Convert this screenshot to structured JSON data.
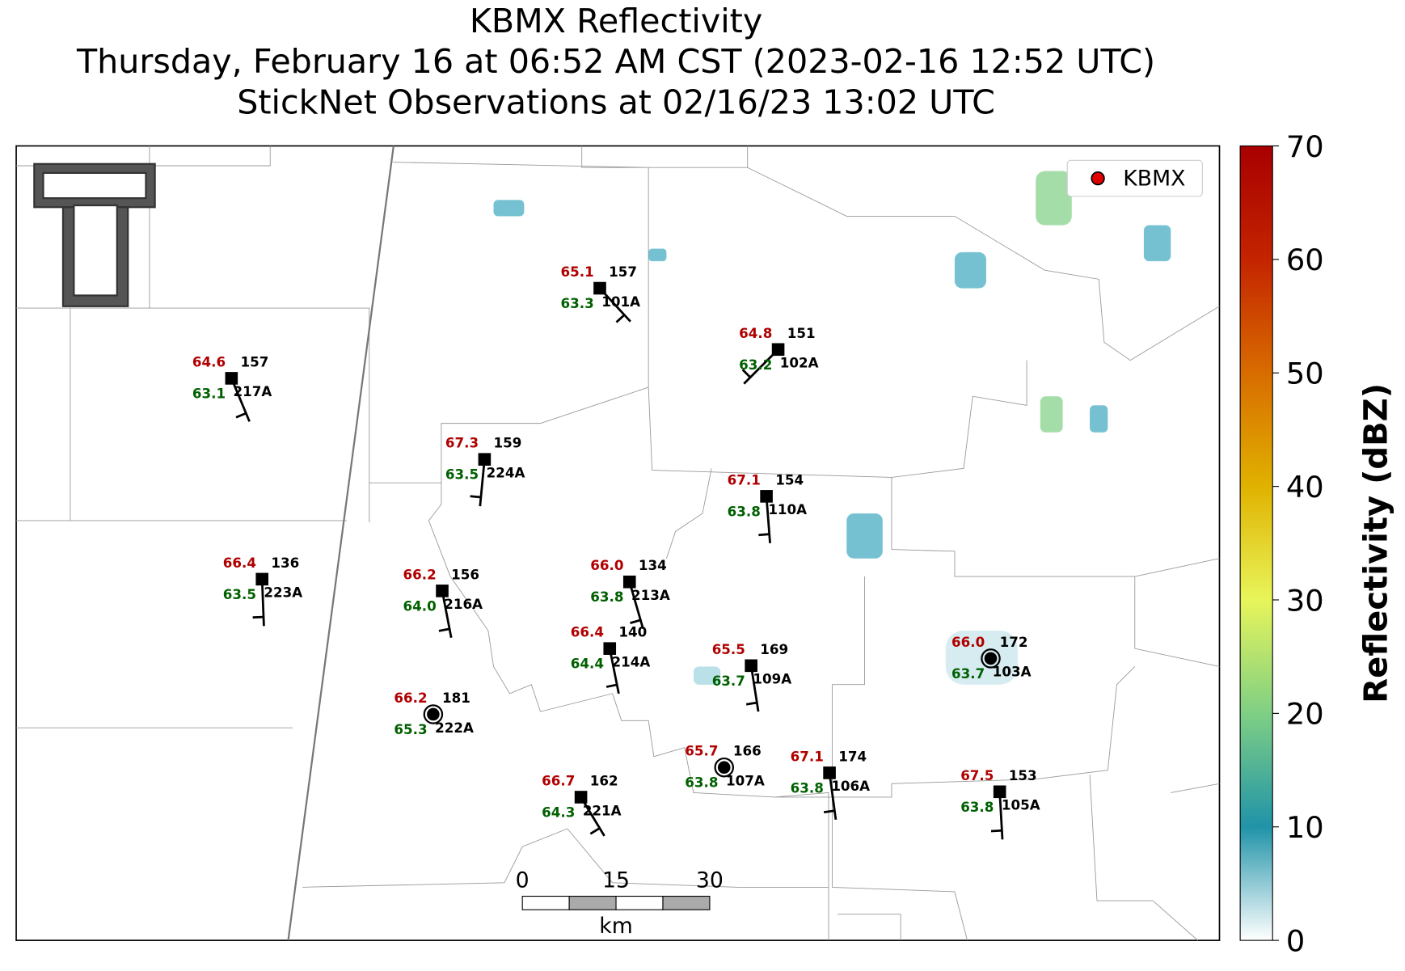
{
  "title": {
    "line1": "KBMX Reflectivity",
    "line2": "Thursday, February 16 at 06:52 AM CST (2023-02-16 12:52 UTC)",
    "line3": "StickNet Observations at 02/16/23 13:02 UTC"
  },
  "legend": {
    "label": "KBMX"
  },
  "colorbar": {
    "label": "Reflectivity (dBZ)",
    "lim": [
      0,
      70
    ],
    "ticks": [
      0,
      10,
      20,
      30,
      40,
      50,
      60,
      70
    ]
  },
  "scalebar": {
    "ticks": [
      0,
      15,
      30
    ],
    "unit": "km"
  },
  "stations": [
    {
      "id": "101A",
      "temp": "65.1",
      "dew": "63.3",
      "value": "157"
    },
    {
      "id": "102A",
      "temp": "64.8",
      "dew": "63.2",
      "value": "151"
    },
    {
      "id": "217A",
      "temp": "64.6",
      "dew": "63.1",
      "value": "157"
    },
    {
      "id": "224A",
      "temp": "67.3",
      "dew": "63.5",
      "value": "159"
    },
    {
      "id": "110A",
      "temp": "67.1",
      "dew": "63.8",
      "value": "154"
    },
    {
      "id": "223A",
      "temp": "66.4",
      "dew": "63.5",
      "value": "136"
    },
    {
      "id": "216A",
      "temp": "66.2",
      "dew": "64.0",
      "value": "156"
    },
    {
      "id": "213A",
      "temp": "66.0",
      "dew": "63.8",
      "value": "134"
    },
    {
      "id": "214A",
      "temp": "66.4",
      "dew": "64.4",
      "value": "140"
    },
    {
      "id": "109A",
      "temp": "65.5",
      "dew": "63.7",
      "value": "169"
    },
    {
      "id": "103A",
      "temp": "66.0",
      "dew": "63.7",
      "value": "172"
    },
    {
      "id": "222A",
      "temp": "66.2",
      "dew": "65.3",
      "value": "181"
    },
    {
      "id": "107A",
      "temp": "65.7",
      "dew": "63.8",
      "value": "166"
    },
    {
      "id": "106A",
      "temp": "67.1",
      "dew": "63.8",
      "value": "174"
    },
    {
      "id": "221A",
      "temp": "66.7",
      "dew": "64.3",
      "value": "162"
    },
    {
      "id": "105A",
      "temp": "67.5",
      "dew": "63.8",
      "value": "153"
    }
  ]
}
